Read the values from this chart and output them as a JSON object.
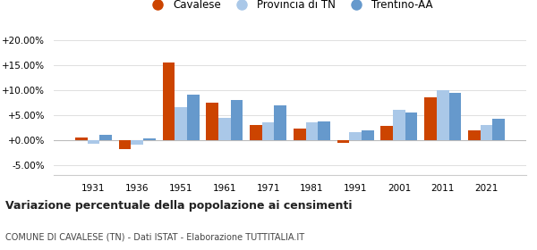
{
  "years": [
    1931,
    1936,
    1951,
    1961,
    1971,
    1981,
    1991,
    2001,
    2011,
    2021
  ],
  "cavalese": [
    0.5,
    -1.8,
    15.5,
    7.5,
    3.0,
    2.2,
    -0.6,
    2.8,
    8.5,
    2.0
  ],
  "provincia_tn": [
    -0.8,
    -0.9,
    6.5,
    4.5,
    3.5,
    3.5,
    1.5,
    6.0,
    10.0,
    3.0
  ],
  "trentino_aa": [
    1.0,
    0.3,
    9.0,
    8.0,
    7.0,
    3.8,
    2.0,
    5.5,
    9.5,
    4.3
  ],
  "color_cavalese": "#cc4400",
  "color_provincia": "#aac8e8",
  "color_trentino": "#6699cc",
  "title": "Variazione percentuale della popolazione ai censimenti",
  "subtitle": "COMUNE DI CAVALESE (TN) - Dati ISTAT - Elaborazione TUTTITALIA.IT",
  "legend_labels": [
    "Cavalese",
    "Provincia di TN",
    "Trentino-AA"
  ],
  "yticks": [
    -5,
    0,
    5,
    10,
    15,
    20
  ],
  "ylim": [
    -7,
    22
  ],
  "bar_width": 0.28,
  "background_color": "#ffffff",
  "grid_color": "#e0e0e0"
}
